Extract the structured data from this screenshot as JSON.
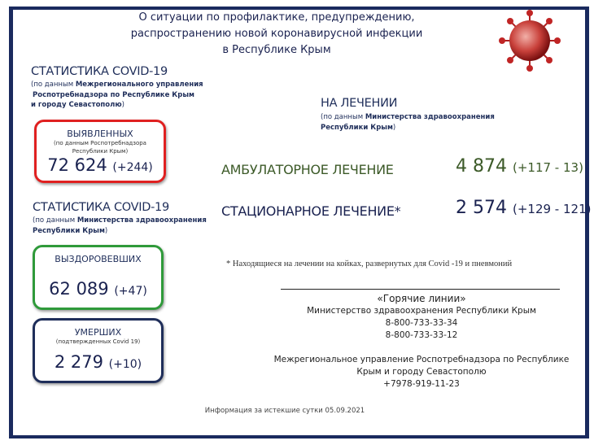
{
  "title": [
    "О ситуации по профилактике, предупреждению,",
    "распространению новой коронавирусной инфекции",
    "в Республике Крым"
  ],
  "left": {
    "stats1": {
      "heading": "СТАТИСТИКА COVID-19",
      "source_prefix": "(по данным ",
      "source_bold": "Межрегионального управления",
      "source_line2": "Роспотребнадзора по Республике Крым",
      "source_line3": "и городу Севастополю",
      ")": ")"
    },
    "detected": {
      "label": "ВЫЯВЛЕННЫХ",
      "note1": "(по данным Роспотребнадзора",
      "note2": "Республики Крым)",
      "value": "72 624",
      "delta": "(+244)",
      "color": "#e02020"
    },
    "stats2": {
      "heading": "СТАТИСТИКА COVID-19",
      "source_prefix": "(по данным ",
      "source_bold": "Министерства здравоохранения",
      "source_line2": "Республики Крым",
      ")": ")"
    },
    "recovered": {
      "label": "ВЫЗДОРОВЕВШИХ",
      "value": "62 089",
      "delta": "(+47)",
      "color": "#2f9a3a"
    },
    "deaths": {
      "label": "УМЕРШИХ",
      "note": "(подтвержденных Covid 19)",
      "value": "2 279",
      "delta": "(+10)",
      "color": "#1f2e5a"
    }
  },
  "treatment": {
    "heading": "НА ЛЕЧЕНИИ",
    "source_prefix": "(по данным ",
    "source_bold": "Министерства здравоохранения",
    "source_line2": "Республики Крым",
    ")": ")",
    "outpatient": {
      "label": "АМБУЛАТОРНОЕ ЛЕЧЕНИЕ",
      "value": "4 874",
      "delta": "(+117  -  13)",
      "color": "#3c5a28"
    },
    "inpatient": {
      "label": "СТАЦИОНАРНОЕ ЛЕЧЕНИЕ*",
      "value": "2 574",
      "delta": "(+129  - 121)",
      "color": "#1a2250"
    },
    "footnote": "* Находящиеся на лечении на койках, развернутых для Covid  -19  и пневмоний"
  },
  "hotlines": {
    "title": "«Горячие линии»",
    "ministry": "Министерство здравоохранения Республики Крым",
    "phone1": "8-800-733-33-34",
    "phone2": "8-800-733-33-12",
    "agency1": "Межрегиональное управление Роспотребнадзора по Республике",
    "agency2": "Крым и городу Севастополю",
    "phone3": "+7978-919-11-23"
  },
  "footer": "Информация за истекшие сутки 05.09.2021",
  "icons": {
    "virus": "coronavirus-icon"
  }
}
